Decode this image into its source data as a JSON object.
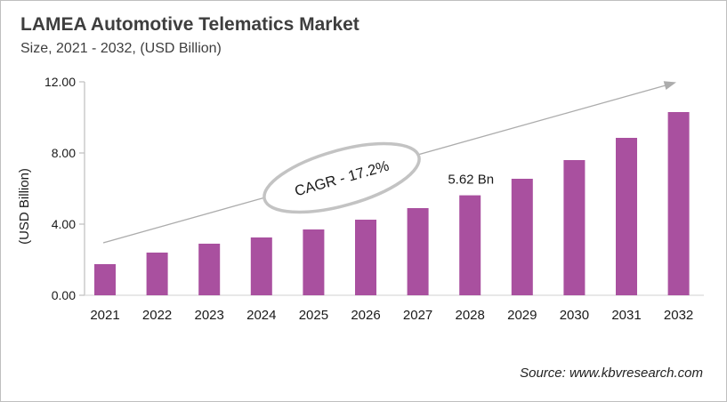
{
  "header": {
    "title": "LAMEA Automotive Telematics Market",
    "subtitle": "Size, 2021 - 2032, (USD Billion)"
  },
  "footer": {
    "source": "Source: www.kbvresearch.com"
  },
  "chart_data": {
    "type": "bar",
    "title": "LAMEA Automotive Telematics Market",
    "subtitle": "Size, 2021 - 2032, (USD Billion)",
    "categories": [
      "2021",
      "2022",
      "2023",
      "2024",
      "2025",
      "2026",
      "2027",
      "2028",
      "2029",
      "2030",
      "2031",
      "2032"
    ],
    "values": [
      1.75,
      2.4,
      2.9,
      3.25,
      3.7,
      4.25,
      4.9,
      5.62,
      6.55,
      7.6,
      8.85,
      10.3
    ],
    "ylabel": "(USD Billion)",
    "ylim": [
      0,
      12
    ],
    "yticks": [
      0,
      4,
      8,
      12
    ],
    "ytick_labels": [
      "0.00",
      "4.00",
      "8.00",
      "12.00"
    ],
    "grid": false,
    "legend": false,
    "colors": {
      "bar": "#A9509F",
      "axis": "#BFBFBF",
      "baseline": "#D9D9D9",
      "trend_arrow": "#ACACAC",
      "ellipse_stroke": "#C3C3C3",
      "text": "#1A1A1A"
    },
    "annotations": {
      "cagr_label": "CAGR - 17.2%",
      "value_label": "5.62 Bn",
      "value_label_category": "2028",
      "trend_arrow": true
    }
  }
}
